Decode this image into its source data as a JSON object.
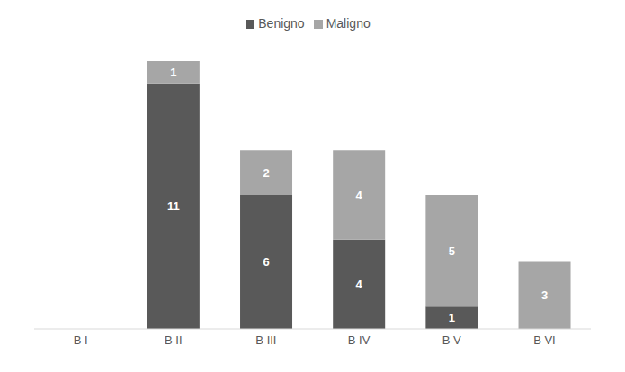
{
  "chart_data": {
    "type": "bar",
    "categories": [
      "B I",
      "B II",
      "B III",
      "B IV",
      "B V",
      "B VI"
    ],
    "series": [
      {
        "name": "Benigno",
        "color": "#595959",
        "values": [
          0,
          11,
          6,
          4,
          1,
          0
        ]
      },
      {
        "name": "Maligno",
        "color": "#a6a6a6",
        "values": [
          0,
          1,
          2,
          4,
          5,
          3
        ]
      }
    ],
    "ylim": [
      0,
      12
    ],
    "stacked": true,
    "data_labels": true,
    "legend": "top",
    "tick_labels": "x"
  }
}
